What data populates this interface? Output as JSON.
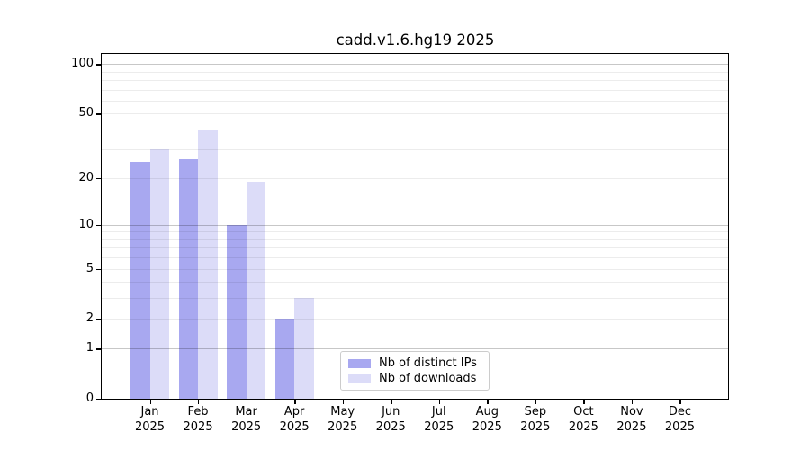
{
  "title": "cadd.v1.6.hg19 2025",
  "chart_data": {
    "type": "bar",
    "title": "cadd.v1.6.hg19 2025",
    "categories": [
      "Jan",
      "Feb",
      "Mar",
      "Apr",
      "May",
      "Jun",
      "Jul",
      "Aug",
      "Sep",
      "Oct",
      "Nov",
      "Dec"
    ],
    "x_year_label": "2025",
    "series": [
      {
        "name": "Nb of distinct IPs",
        "color": "#a8a8f0",
        "values": [
          25,
          26,
          10,
          2,
          0,
          0,
          0,
          0,
          0,
          0,
          0,
          0
        ]
      },
      {
        "name": "Nb of downloads",
        "color": "#dcdcf8",
        "values": [
          30,
          40,
          19,
          3,
          0,
          0,
          0,
          0,
          0,
          0,
          0,
          0
        ]
      }
    ],
    "yscale": "log1p",
    "yticks": [
      0,
      1,
      2,
      5,
      10,
      20,
      50,
      100
    ],
    "ylim": [
      0,
      115
    ],
    "grid": {
      "minor_values": [
        2,
        3,
        4,
        5,
        6,
        7,
        8,
        9,
        20,
        30,
        40,
        50,
        60,
        70,
        80,
        90
      ],
      "major_values": [
        1,
        10,
        100
      ],
      "minor_color": "rgba(0,0,0,0.075)",
      "major_color": "rgba(0,0,0,0.22)"
    },
    "legend": {
      "position": "lower center"
    },
    "colors": {
      "distinct_ips_bar": "#a8a8f0",
      "downloads_bar": "#dcdcf8",
      "axis": "#000000",
      "legend_border": "#cccccc"
    }
  }
}
